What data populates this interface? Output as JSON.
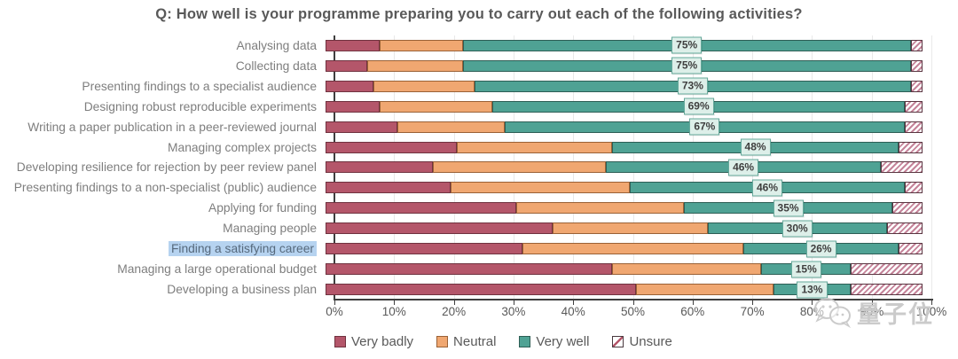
{
  "title": "Q: How well is your programme preparing you to carry out each of the following activities?",
  "watermark": {
    "icon": "wechat-bubbles-icon",
    "text": "量子位"
  },
  "chart_data": {
    "type": "bar",
    "orientation": "horizontal-stacked",
    "title": "Q: How well is your programme preparing you to carry out each of the following activities?",
    "categories": [
      "Analysing data",
      "Collecting data",
      "Presenting findings to a specialist audience",
      "Designing robust reproducible experiments",
      "Writing a paper publication in a peer-reviewed journal",
      "Managing complex projects",
      "Developing resilience for rejection by peer review panel",
      "Presenting findings to a non-specialist (public) audience",
      "Applying for funding",
      "Managing people",
      "Finding a satisfying career",
      "Managing a large operational budget",
      "Developing a business plan"
    ],
    "highlighted_category": "Finding a satisfying career",
    "series": [
      {
        "name": "Very badly",
        "color": "#b4566a",
        "values": [
          9,
          7,
          8,
          9,
          12,
          22,
          18,
          21,
          32,
          38,
          33,
          48,
          52
        ]
      },
      {
        "name": "Neutral",
        "color": "#f0a771",
        "values": [
          14,
          16,
          17,
          19,
          18,
          26,
          29,
          30,
          28,
          26,
          37,
          25,
          23
        ]
      },
      {
        "name": "Very well",
        "color": "#4fa294",
        "values": [
          75,
          75,
          73,
          69,
          67,
          48,
          46,
          46,
          35,
          30,
          26,
          15,
          13
        ]
      },
      {
        "name": "Unsure",
        "color": "hatched-white-rose",
        "values": [
          2,
          2,
          2,
          3,
          3,
          4,
          7,
          3,
          5,
          6,
          4,
          12,
          12
        ]
      }
    ],
    "value_labels": [
      "75%",
      "75%",
      "73%",
      "69%",
      "67%",
      "48%",
      "46%",
      "46%",
      "35%",
      "30%",
      "26%",
      "15%",
      "13%"
    ],
    "value_label_style": {
      "background": "#ddefe9",
      "border": "#64a89a"
    },
    "xlim": [
      0,
      100
    ],
    "x_ticks": [
      "0%",
      "10%",
      "20%",
      "30%",
      "40%",
      "50%",
      "60%",
      "70%",
      "80%",
      "90%",
      "100%"
    ],
    "grid": true,
    "legend_position": "bottom"
  }
}
